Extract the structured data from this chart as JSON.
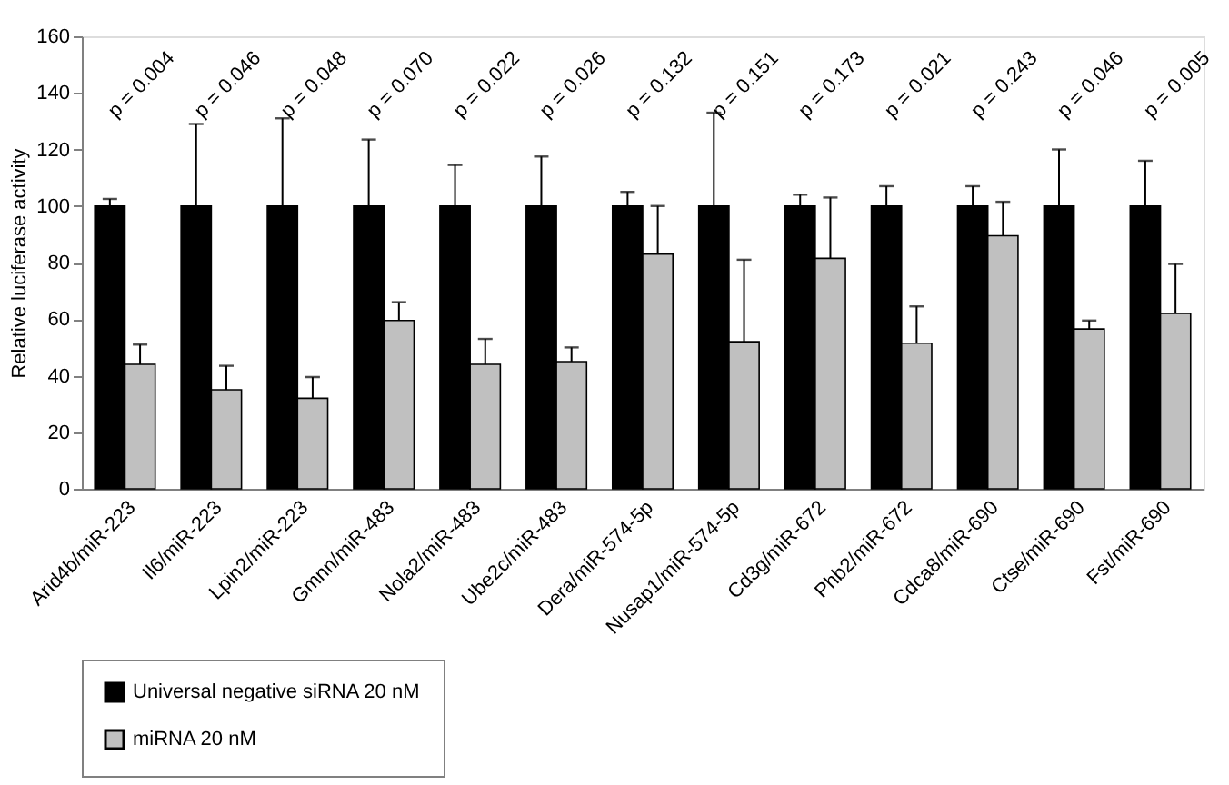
{
  "chart_data": {
    "type": "bar",
    "ylabel": "Relative luciferase activity",
    "categories": [
      "Arid4b/miR-223",
      "Il6/miR-223",
      "Lpin2/miR-223",
      "Gmnn/miR-483",
      "Nola2/miR-483",
      "Ube2c/miR-483",
      "Dera/miR-574-5p",
      "Nusap1/miR-574-5p",
      "Cd3g/miR-672",
      "Phb2/miR-672",
      "Cdca8/miR-690",
      "Ctse/miR-690",
      "Fst/miR-690"
    ],
    "series": [
      {
        "name": "Universal negative siRNA 20 nM",
        "color": "#000000",
        "values": [
          100,
          100,
          100,
          100,
          100,
          100,
          100,
          100,
          100,
          100,
          100,
          100,
          100
        ],
        "errors": [
          [
            100,
            102.5
          ],
          [
            100,
            129
          ],
          [
            100,
            131
          ],
          [
            100,
            123.5
          ],
          [
            100,
            114.5
          ],
          [
            100,
            117.5
          ],
          [
            100,
            105
          ],
          [
            100,
            133
          ],
          [
            100,
            104
          ],
          [
            100,
            107
          ],
          [
            100,
            107
          ],
          [
            100,
            120
          ],
          [
            100,
            116
          ]
        ]
      },
      {
        "name": "miRNA 20 nM",
        "color": "#c0c0c0",
        "values": [
          44,
          35,
          32,
          59.5,
          44,
          45,
          83,
          52,
          81.5,
          51.5,
          89.5,
          56.5,
          62
        ],
        "errors": [
          [
            44,
            51
          ],
          [
            35,
            43.5
          ],
          [
            32,
            39.5
          ],
          [
            59.5,
            66
          ],
          [
            44,
            53
          ],
          [
            45,
            50
          ],
          [
            83,
            100
          ],
          [
            52,
            81
          ],
          [
            81.5,
            103
          ],
          [
            51.5,
            64.5
          ],
          [
            89.5,
            101.5
          ],
          [
            56.5,
            59.5
          ],
          [
            62,
            79.5
          ]
        ]
      }
    ],
    "ylim": [
      0,
      160
    ],
    "yticks": [
      0,
      20,
      40,
      60,
      80,
      100,
      120,
      140,
      160
    ],
    "grid": false,
    "legend": "bottom left",
    "annotations": [
      "p = 0.004",
      "p = 0.046",
      "p = 0.048",
      "p = 0.070",
      "p = 0.022",
      "p = 0.026",
      "p = 0.132",
      "p = 0.151",
      "p = 0.173",
      "p = 0.021",
      "p = 0.243",
      "p = 0.046",
      "p = 0.005"
    ]
  }
}
